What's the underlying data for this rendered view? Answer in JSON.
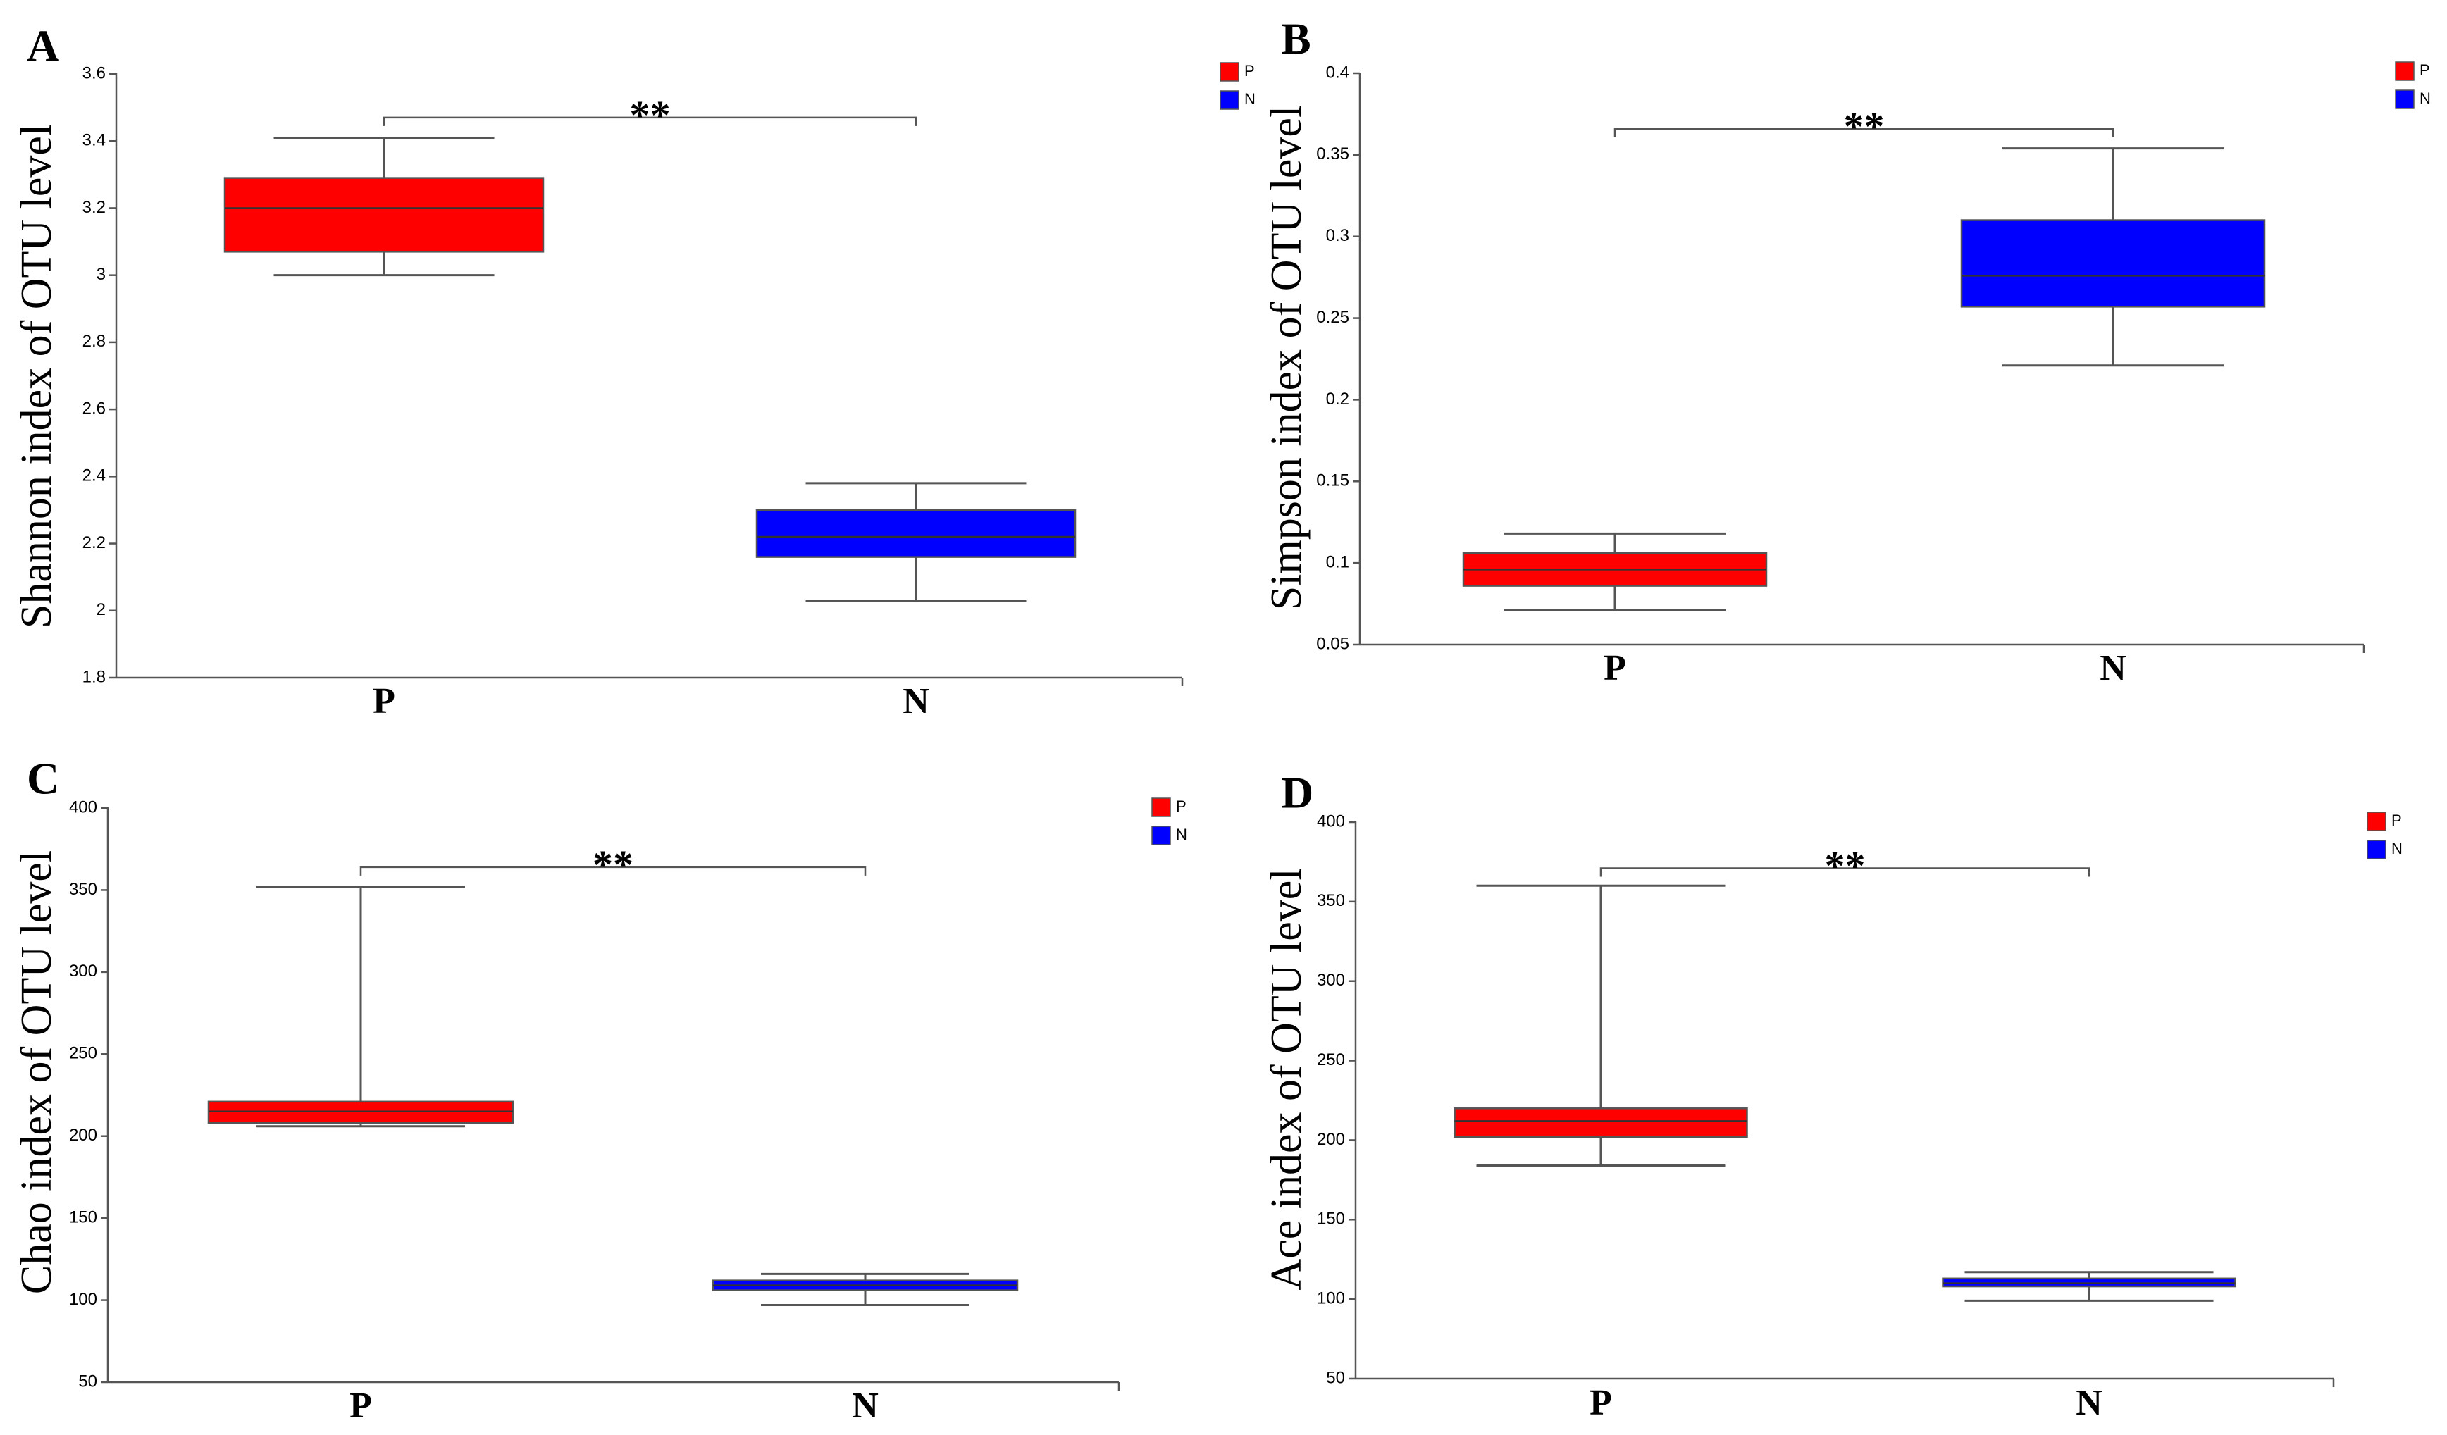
{
  "colors": {
    "P": "#ff0000",
    "N": "#0000ff",
    "stroke": "#555555"
  },
  "chart_data": [
    {
      "type": "box",
      "panel": "A",
      "ylabel": "Shannon index of OTU level",
      "ylim": [
        1.8,
        3.6
      ],
      "ticks": [
        1.8,
        2,
        2.2,
        2.4,
        2.6,
        2.8,
        3,
        3.2,
        3.4,
        3.6
      ],
      "tick_labels": [
        "1.8",
        "2",
        "2.2",
        "2.4",
        "2.6",
        "2.8",
        "3",
        "3.2",
        "3.4",
        "3.6"
      ],
      "categories": [
        "P",
        "N"
      ],
      "series": [
        {
          "name": "P",
          "min": 3.0,
          "q1": 3.07,
          "median": 3.2,
          "q3": 3.29,
          "max": 3.41
        },
        {
          "name": "N",
          "min": 2.03,
          "q1": 2.16,
          "median": 2.22,
          "q3": 2.3,
          "max": 2.38
        }
      ],
      "significance": "**",
      "sig_y": 3.47,
      "legend": [
        "P",
        "N"
      ]
    },
    {
      "type": "box",
      "panel": "B",
      "ylabel": "Simpson index of OTU level",
      "ylim": [
        0.05,
        0.4
      ],
      "ticks": [
        0.05,
        0.1,
        0.15,
        0.2,
        0.25,
        0.3,
        0.35,
        0.4
      ],
      "tick_labels": [
        "0.05",
        "0.1",
        "0.15",
        "0.2",
        "0.25",
        "0.3",
        "0.35",
        "0.4"
      ],
      "categories": [
        "P",
        "N"
      ],
      "series": [
        {
          "name": "P",
          "min": 0.071,
          "q1": 0.086,
          "median": 0.096,
          "q3": 0.106,
          "max": 0.118
        },
        {
          "name": "N",
          "min": 0.221,
          "q1": 0.257,
          "median": 0.276,
          "q3": 0.31,
          "max": 0.354
        }
      ],
      "significance": "**",
      "sig_y": 0.366,
      "legend": [
        "P",
        "N"
      ]
    },
    {
      "type": "box",
      "panel": "C",
      "ylabel": "Chao index of OTU level",
      "ylim": [
        50,
        400
      ],
      "ticks": [
        50,
        100,
        150,
        200,
        250,
        300,
        350,
        400
      ],
      "tick_labels": [
        "50",
        "100",
        "150",
        "200",
        "250",
        "300",
        "350",
        "400"
      ],
      "categories": [
        "P",
        "N"
      ],
      "series": [
        {
          "name": "P",
          "min": 206,
          "q1": 208,
          "median": 215,
          "q3": 221,
          "max": 352
        },
        {
          "name": "N",
          "min": 97,
          "q1": 106,
          "median": 109,
          "q3": 112,
          "max": 116
        }
      ],
      "significance": "**",
      "sig_y": 364,
      "legend": [
        "P",
        "N"
      ]
    },
    {
      "type": "box",
      "panel": "D",
      "ylabel": "Ace index of OTU level",
      "ylim": [
        50,
        400
      ],
      "ticks": [
        50,
        100,
        150,
        200,
        250,
        300,
        350,
        400
      ],
      "tick_labels": [
        "50",
        "100",
        "150",
        "200",
        "250",
        "300",
        "350",
        "400"
      ],
      "categories": [
        "P",
        "N"
      ],
      "series": [
        {
          "name": "P",
          "min": 184,
          "q1": 202,
          "median": 212,
          "q3": 220,
          "max": 360
        },
        {
          "name": "N",
          "min": 99,
          "q1": 108,
          "median": 110,
          "q3": 113,
          "max": 117
        }
      ],
      "significance": "**",
      "sig_y": 371,
      "legend": [
        "P",
        "N"
      ]
    }
  ]
}
